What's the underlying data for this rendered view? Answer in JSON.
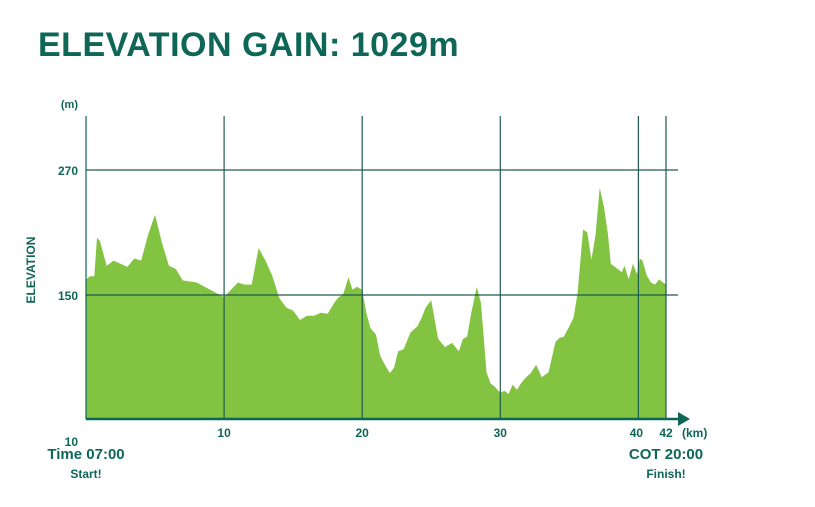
{
  "title": "ELEVATION GAIN: 1029m",
  "colors": {
    "fill": "#82c341",
    "axis": "#0e6657",
    "grid": "#1d5a4e"
  },
  "start": {
    "time": "Time 07:00",
    "label": "Start!"
  },
  "finish": {
    "time": "COT 20:00",
    "label": "Finish!"
  },
  "chart_data": {
    "type": "area",
    "title": "ELEVATION GAIN: 1029m",
    "xlabel": "(km)",
    "ylabel": "ELEVATION",
    "yunit": "(m)",
    "xlim": [
      0,
      42
    ],
    "ylim": [
      10,
      270
    ],
    "xticks": [
      0,
      10,
      20,
      30,
      40,
      42
    ],
    "xtick_labels": [
      "",
      "10",
      "20",
      "30",
      "40",
      "42"
    ],
    "yticks": [
      10,
      150,
      270
    ],
    "ytick_labels": [
      "10",
      "150",
      "270"
    ],
    "vgrid": [
      10,
      20,
      30,
      40,
      42
    ],
    "hgrid": [
      150,
      270
    ],
    "grid": true,
    "x": [
      0,
      0.3,
      0.6,
      0.8,
      1.0,
      1.5,
      2.0,
      2.5,
      3.0,
      3.5,
      4.0,
      4.5,
      5.0,
      5.5,
      6.0,
      6.5,
      7.0,
      8.0,
      9.0,
      10.0,
      11.0,
      11.5,
      12.0,
      12.5,
      13.0,
      13.5,
      14.0,
      14.5,
      15.0,
      15.5,
      16.0,
      16.5,
      17.0,
      17.5,
      18.0,
      18.3,
      18.6,
      18.8,
      19.0,
      19.3,
      19.6,
      20.0,
      20.3,
      20.6,
      21.0,
      21.3,
      21.6,
      22.0,
      22.3,
      22.6,
      23.0,
      23.5,
      24.0,
      24.3,
      24.6,
      25.0,
      25.5,
      26.0,
      26.5,
      27.0,
      27.3,
      27.6,
      27.9,
      28.3,
      28.6,
      29.0,
      29.3,
      29.6,
      30.0,
      30.3,
      30.6,
      30.9,
      31.2,
      31.5,
      31.8,
      32.2,
      32.6,
      33.0,
      33.5,
      34.0,
      34.3,
      34.6,
      35.0,
      35.3,
      35.6,
      36.0,
      36.3,
      36.6,
      36.9,
      37.2,
      37.5,
      37.8,
      38.0,
      38.5,
      38.8,
      39.0,
      39.3,
      39.6,
      39.9,
      40.1,
      40.3,
      40.6,
      40.9,
      41.2,
      41.5,
      41.8,
      42.0
    ],
    "y": [
      165,
      168,
      168,
      205,
      202,
      178,
      183,
      180,
      177,
      185,
      183,
      208,
      227,
      200,
      178,
      175,
      164,
      162,
      155,
      148,
      162,
      160,
      160,
      195,
      183,
      168,
      147,
      138,
      135,
      126,
      130,
      130,
      133,
      132,
      143,
      148,
      150,
      158,
      167,
      155,
      158,
      155,
      133,
      118,
      112,
      92,
      84,
      75,
      80,
      96,
      98,
      114,
      120,
      128,
      138,
      145,
      108,
      100,
      104,
      96,
      108,
      110,
      133,
      158,
      142,
      76,
      65,
      62,
      56,
      58,
      55,
      64,
      59,
      65,
      70,
      75,
      83,
      71,
      76,
      105,
      109,
      110,
      120,
      128,
      152,
      213,
      210,
      184,
      208,
      253,
      235,
      208,
      180,
      175,
      172,
      178,
      165,
      180,
      170,
      185,
      183,
      169,
      162,
      160,
      165,
      162,
      160
    ]
  }
}
